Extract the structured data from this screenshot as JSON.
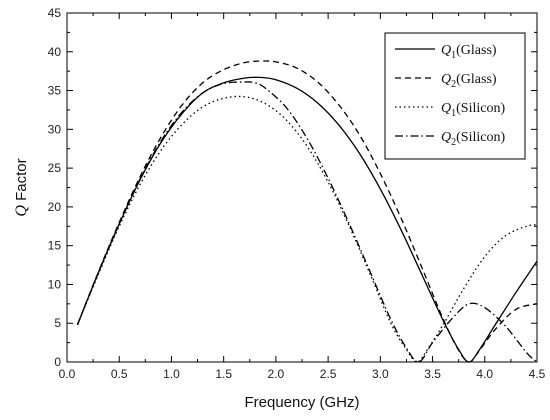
{
  "chart_data": {
    "type": "line",
    "xlabel": "Frequency (GHz)",
    "ylabel": "Q Factor",
    "ylabel_parts": {
      "italic": "Q",
      "rest": " Factor"
    },
    "xlim": [
      0,
      4.5
    ],
    "ylim": [
      0,
      45
    ],
    "xticks": [
      0.0,
      0.5,
      1.0,
      1.5,
      2.0,
      2.5,
      3.0,
      3.5,
      4.0,
      4.5
    ],
    "xtick_labels": [
      "0.0",
      "0.5",
      "1.0",
      "1.5",
      "2.0",
      "2.5",
      "3.0",
      "3.5",
      "4.0",
      "4.5"
    ],
    "yticks": [
      0,
      5,
      10,
      15,
      20,
      25,
      30,
      35,
      40,
      45
    ],
    "ytick_labels": [
      "0",
      "5",
      "10",
      "15",
      "20",
      "25",
      "30",
      "35",
      "40",
      "45"
    ],
    "grid": false,
    "legend_position": "top-right",
    "series": [
      {
        "name": "Q1(Glass)",
        "label_q": "Q",
        "label_sub": "1",
        "label_rest": "(Glass)",
        "dash": "solid",
        "x": [
          0.1,
          0.3,
          0.5,
          0.7,
          0.9,
          1.1,
          1.3,
          1.5,
          1.7,
          1.85,
          2.0,
          2.2,
          2.4,
          2.6,
          2.8,
          3.0,
          3.2,
          3.4,
          3.6,
          3.75,
          3.85,
          3.95,
          4.1,
          4.3,
          4.5
        ],
        "y": [
          4.8,
          11.5,
          17.8,
          23.5,
          28.3,
          32.0,
          34.7,
          36.0,
          36.6,
          36.7,
          36.4,
          35.3,
          33.4,
          30.6,
          26.9,
          22.3,
          17.0,
          11.2,
          5.4,
          1.6,
          0.0,
          1.6,
          4.8,
          9.0,
          13.0
        ]
      },
      {
        "name": "Q2(Glass)",
        "label_q": "Q",
        "label_sub": "2",
        "label_rest": "(Glass)",
        "dash": "dashed",
        "x": [
          0.1,
          0.3,
          0.5,
          0.7,
          0.9,
          1.1,
          1.3,
          1.5,
          1.7,
          1.85,
          2.0,
          2.2,
          2.4,
          2.6,
          2.8,
          3.0,
          3.2,
          3.4,
          3.6,
          3.75,
          3.85,
          3.95,
          4.1,
          4.3,
          4.5
        ],
        "y": [
          4.8,
          11.6,
          18.0,
          23.9,
          29.0,
          33.1,
          36.0,
          37.7,
          38.6,
          38.8,
          38.7,
          37.9,
          36.1,
          33.2,
          29.3,
          24.3,
          18.5,
          12.1,
          5.6,
          1.5,
          0.0,
          1.5,
          4.2,
          6.8,
          7.5
        ]
      },
      {
        "name": "Q1(Silicon)",
        "label_q": "Q",
        "label_sub": "1",
        "label_rest": "(Silicon)",
        "dash": "dotted",
        "x": [
          0.1,
          0.3,
          0.5,
          0.7,
          0.9,
          1.1,
          1.3,
          1.5,
          1.7,
          1.9,
          2.1,
          2.3,
          2.5,
          2.7,
          2.9,
          3.1,
          3.25,
          3.35,
          3.45,
          3.6,
          3.8,
          4.0,
          4.2,
          4.4,
          4.5
        ],
        "y": [
          4.8,
          11.3,
          17.5,
          22.9,
          27.3,
          30.6,
          32.9,
          34.0,
          34.2,
          33.3,
          31.2,
          27.8,
          23.2,
          17.6,
          11.4,
          5.0,
          1.6,
          0.0,
          1.6,
          4.8,
          9.5,
          13.6,
          16.3,
          17.5,
          17.7
        ]
      },
      {
        "name": "Q2(Silicon)",
        "label_q": "Q",
        "label_sub": "2",
        "label_rest": "(Silicon)",
        "dash": "dashdot",
        "x": [
          0.1,
          0.3,
          0.5,
          0.7,
          0.9,
          1.1,
          1.3,
          1.5,
          1.7,
          1.8,
          1.9,
          2.1,
          2.3,
          2.5,
          2.7,
          2.9,
          3.1,
          3.25,
          3.37,
          3.5,
          3.7,
          3.85,
          4.0,
          4.2,
          4.4,
          4.5
        ],
        "y": [
          4.8,
          11.5,
          17.8,
          23.6,
          28.5,
          32.2,
          34.7,
          35.9,
          36.1,
          36.0,
          35.3,
          32.8,
          28.8,
          23.7,
          17.9,
          11.7,
          5.5,
          1.8,
          0.0,
          2.5,
          5.8,
          7.5,
          7.0,
          4.6,
          1.2,
          0.0
        ]
      }
    ]
  }
}
